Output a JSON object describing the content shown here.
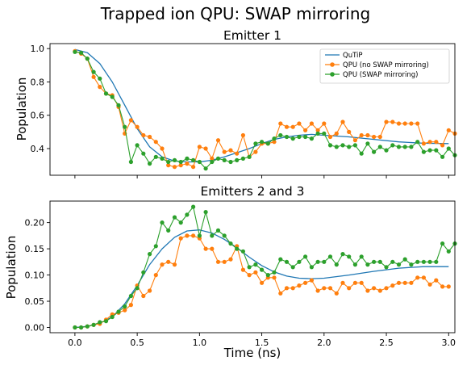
{
  "figure": {
    "suptitle": "Trapped ion QPU: SWAP mirroring",
    "xlabel": "Time (ns)"
  },
  "colors": {
    "qutip": "#1f77b4",
    "no_mirror": "#ff7f0e",
    "mirror": "#2ca02c"
  },
  "chart_data": [
    {
      "type": "line",
      "title": "Emitter 1",
      "xlabel": "",
      "ylabel": "Population",
      "xlim": [
        -0.2,
        3.05
      ],
      "ylim": [
        0.24,
        1.03
      ],
      "xticks": [
        0.0,
        0.5,
        1.0,
        1.5,
        2.0,
        2.5,
        3.0
      ],
      "xticklabels": [
        "",
        "",
        "",
        "",
        "",
        "",
        ""
      ],
      "yticks": [
        0.4,
        0.6,
        0.8,
        1.0
      ],
      "yticklabels": [
        "0.4",
        "0.6",
        "0.8",
        "1.0"
      ],
      "legend": {
        "placement": "top-right",
        "show": true
      },
      "x_dt": 0.05,
      "series": [
        {
          "name": "QuTiP",
          "key": "qutip",
          "marker": false,
          "x": [
            0.0,
            0.1,
            0.2,
            0.3,
            0.4,
            0.5,
            0.6,
            0.7,
            0.8,
            0.9,
            1.0,
            1.1,
            1.2,
            1.3,
            1.4,
            1.5,
            1.6,
            1.7,
            1.8,
            1.9,
            2.0,
            2.2,
            2.4,
            2.6,
            2.8,
            3.0
          ],
          "values": [
            0.995,
            0.975,
            0.91,
            0.8,
            0.66,
            0.52,
            0.41,
            0.35,
            0.325,
            0.32,
            0.32,
            0.33,
            0.35,
            0.375,
            0.4,
            0.43,
            0.455,
            0.47,
            0.48,
            0.485,
            0.48,
            0.47,
            0.455,
            0.44,
            0.432,
            0.43
          ]
        },
        {
          "name": "QPU (no SWAP mirroring)",
          "key": "no_mirror",
          "marker": true,
          "values": [
            0.985,
            0.97,
            0.94,
            0.83,
            0.77,
            0.73,
            0.72,
            0.65,
            0.49,
            0.57,
            0.53,
            0.48,
            0.47,
            0.44,
            0.4,
            0.3,
            0.29,
            0.3,
            0.31,
            0.29,
            0.41,
            0.4,
            0.34,
            0.45,
            0.38,
            0.39,
            0.37,
            0.48,
            0.35,
            0.38,
            0.43,
            0.43,
            0.44,
            0.55,
            0.53,
            0.53,
            0.55,
            0.51,
            0.55,
            0.51,
            0.55,
            0.47,
            0.49,
            0.56,
            0.5,
            0.45,
            0.48,
            0.48,
            0.47,
            0.47,
            0.56,
            0.56,
            0.55,
            0.55,
            0.55,
            0.55,
            0.43,
            0.44,
            0.44,
            0.42,
            0.51,
            0.49
          ]
        },
        {
          "name": "QPU (SWAP mirroring)",
          "key": "mirror",
          "marker": true,
          "values": [
            0.98,
            0.975,
            0.94,
            0.86,
            0.82,
            0.73,
            0.71,
            0.66,
            0.53,
            0.32,
            0.42,
            0.37,
            0.31,
            0.35,
            0.34,
            0.32,
            0.33,
            0.32,
            0.34,
            0.33,
            0.32,
            0.28,
            0.32,
            0.34,
            0.33,
            0.32,
            0.33,
            0.34,
            0.35,
            0.43,
            0.44,
            0.43,
            0.46,
            0.48,
            0.47,
            0.46,
            0.47,
            0.47,
            0.46,
            0.49,
            0.49,
            0.42,
            0.41,
            0.42,
            0.41,
            0.42,
            0.37,
            0.43,
            0.38,
            0.41,
            0.39,
            0.42,
            0.41,
            0.41,
            0.41,
            0.44,
            0.38,
            0.39,
            0.39,
            0.35,
            0.4,
            0.36
          ]
        }
      ]
    },
    {
      "type": "line",
      "title": "Emitters 2 and 3",
      "xlabel": "Time (ns)",
      "ylabel": "Population",
      "xlim": [
        -0.2,
        3.05
      ],
      "ylim": [
        -0.01,
        0.241
      ],
      "xticks": [
        0.0,
        0.5,
        1.0,
        1.5,
        2.0,
        2.5,
        3.0
      ],
      "xticklabels": [
        "0.0",
        "0.5",
        "1.0",
        "1.5",
        "2.0",
        "2.5",
        "3.0"
      ],
      "yticks": [
        0.0,
        0.05,
        0.1,
        0.15,
        0.2
      ],
      "yticklabels": [
        "0.00",
        "0.05",
        "0.10",
        "0.15",
        "0.20"
      ],
      "legend": {
        "show": false
      },
      "x_dt": 0.05,
      "series": [
        {
          "name": "QuTiP",
          "key": "qutip",
          "marker": false,
          "x": [
            0.0,
            0.1,
            0.2,
            0.3,
            0.4,
            0.5,
            0.6,
            0.7,
            0.8,
            0.9,
            1.0,
            1.1,
            1.2,
            1.3,
            1.4,
            1.5,
            1.6,
            1.7,
            1.8,
            1.9,
            2.0,
            2.2,
            2.4,
            2.6,
            2.8,
            3.0
          ],
          "values": [
            0.0,
            0.002,
            0.008,
            0.02,
            0.045,
            0.08,
            0.12,
            0.15,
            0.172,
            0.184,
            0.186,
            0.18,
            0.168,
            0.152,
            0.134,
            0.118,
            0.106,
            0.098,
            0.094,
            0.093,
            0.094,
            0.1,
            0.107,
            0.113,
            0.116,
            0.116
          ]
        },
        {
          "name": "QPU (no SWAP mirroring)",
          "key": "no_mirror",
          "marker": true,
          "values": [
            0.0,
            0.0,
            0.002,
            0.005,
            0.007,
            0.015,
            0.025,
            0.028,
            0.033,
            0.043,
            0.08,
            0.06,
            0.07,
            0.1,
            0.12,
            0.125,
            0.12,
            0.17,
            0.175,
            0.175,
            0.17,
            0.15,
            0.15,
            0.125,
            0.125,
            0.13,
            0.155,
            0.11,
            0.1,
            0.105,
            0.085,
            0.095,
            0.095,
            0.065,
            0.075,
            0.075,
            0.08,
            0.085,
            0.09,
            0.07,
            0.075,
            0.075,
            0.065,
            0.085,
            0.075,
            0.085,
            0.085,
            0.07,
            0.075,
            0.07,
            0.075,
            0.08,
            0.085,
            0.085,
            0.085,
            0.095,
            0.095,
            0.082,
            0.09,
            0.078,
            0.078
          ]
        },
        {
          "name": "QPU (SWAP mirroring)",
          "key": "mirror",
          "marker": true,
          "values": [
            0.0,
            0.0,
            0.002,
            0.005,
            0.01,
            0.012,
            0.02,
            0.03,
            0.04,
            0.06,
            0.075,
            0.105,
            0.14,
            0.155,
            0.2,
            0.185,
            0.21,
            0.2,
            0.215,
            0.23,
            0.175,
            0.22,
            0.175,
            0.185,
            0.175,
            0.16,
            0.15,
            0.145,
            0.115,
            0.12,
            0.11,
            0.1,
            0.105,
            0.13,
            0.125,
            0.115,
            0.125,
            0.135,
            0.115,
            0.125,
            0.125,
            0.135,
            0.12,
            0.14,
            0.135,
            0.12,
            0.135,
            0.12,
            0.125,
            0.125,
            0.115,
            0.125,
            0.12,
            0.13,
            0.12,
            0.125,
            0.125,
            0.125,
            0.125,
            0.16,
            0.145,
            0.16
          ]
        }
      ]
    }
  ]
}
